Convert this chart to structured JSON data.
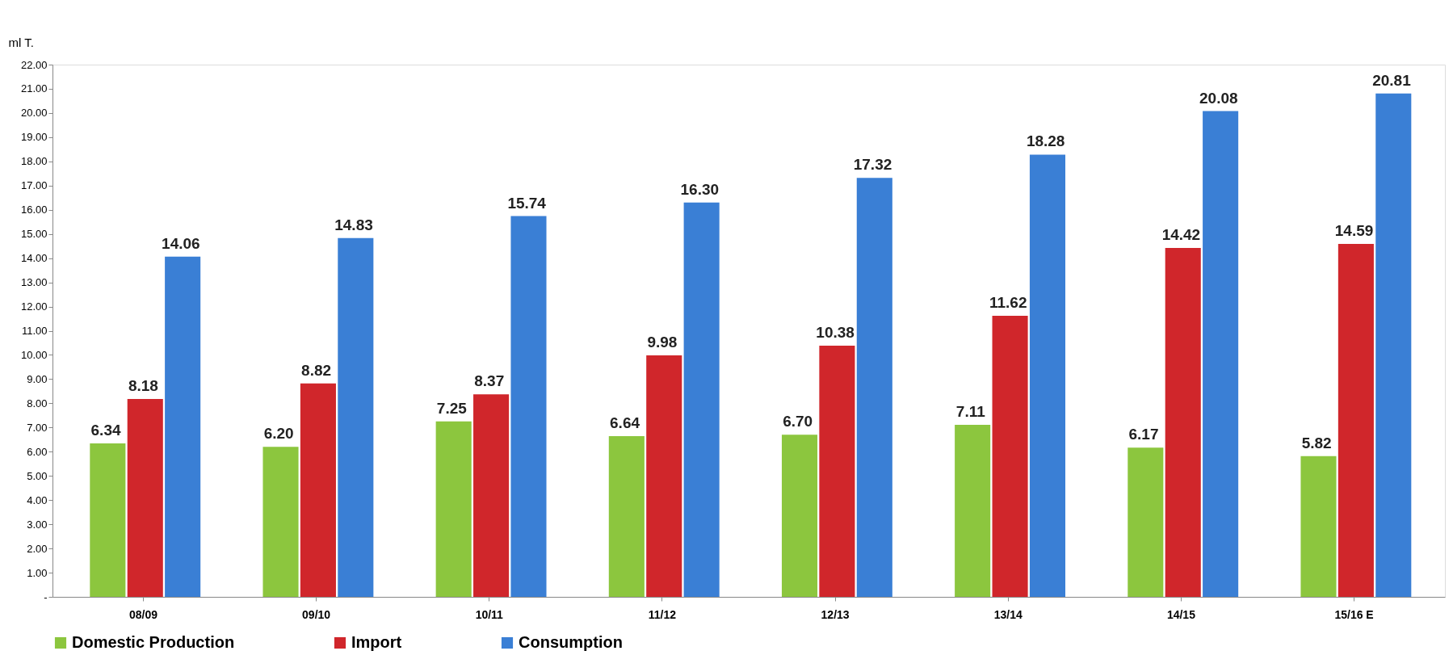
{
  "chart_data": {
    "type": "bar",
    "ylabel": "ml T.",
    "categories": [
      "08/09",
      "09/10",
      "10/11",
      "11/12",
      "12/13",
      "13/14",
      "14/15",
      "15/16 E"
    ],
    "series": [
      {
        "name": "Domestic Production",
        "color": "#8cc63e",
        "values": [
          6.34,
          6.2,
          7.25,
          6.64,
          6.7,
          7.11,
          6.17,
          5.82
        ],
        "value_labels": [
          "6.34",
          "6.20",
          "7.25",
          "6.64",
          "6.70",
          "7.11",
          "6.17",
          "5.82"
        ]
      },
      {
        "name": "Import",
        "color": "#d0262b",
        "values": [
          8.18,
          8.82,
          8.37,
          9.98,
          10.38,
          11.62,
          14.42,
          14.59
        ],
        "value_labels": [
          "8.18",
          "8.82",
          "8.37",
          "9.98",
          "10.38",
          "11.62",
          "14.42",
          "14.59"
        ]
      },
      {
        "name": "Consumption",
        "color": "#3a7fd5",
        "values": [
          14.06,
          14.83,
          15.74,
          16.3,
          17.32,
          18.28,
          20.08,
          20.81
        ],
        "value_labels": [
          "14.06",
          "14.83",
          "15.74",
          "16.30",
          "17.32",
          "18.28",
          "20.08",
          "20.81"
        ]
      }
    ],
    "ylim": [
      0,
      22
    ],
    "yticks": [
      {
        "value": 0,
        "label": "-"
      },
      {
        "value": 1,
        "label": "1.00"
      },
      {
        "value": 2,
        "label": "2.00"
      },
      {
        "value": 3,
        "label": "3.00"
      },
      {
        "value": 4,
        "label": "4.00"
      },
      {
        "value": 5,
        "label": "5.00"
      },
      {
        "value": 6,
        "label": "6.00"
      },
      {
        "value": 7,
        "label": "7.00"
      },
      {
        "value": 8,
        "label": "8.00"
      },
      {
        "value": 9,
        "label": "9.00"
      },
      {
        "value": 10,
        "label": "10.00"
      },
      {
        "value": 11,
        "label": "11.00"
      },
      {
        "value": 12,
        "label": "12.00"
      },
      {
        "value": 13,
        "label": "13.00"
      },
      {
        "value": 14,
        "label": "14.00"
      },
      {
        "value": 15,
        "label": "15.00"
      },
      {
        "value": 16,
        "label": "16.00"
      },
      {
        "value": 17,
        "label": "17.00"
      },
      {
        "value": 18,
        "label": "18.00"
      },
      {
        "value": 19,
        "label": "19.00"
      },
      {
        "value": 20,
        "label": "20.00"
      },
      {
        "value": 21,
        "label": "21.00"
      },
      {
        "value": 22,
        "label": "22.00"
      }
    ],
    "grid": false,
    "legend": "bottom"
  }
}
